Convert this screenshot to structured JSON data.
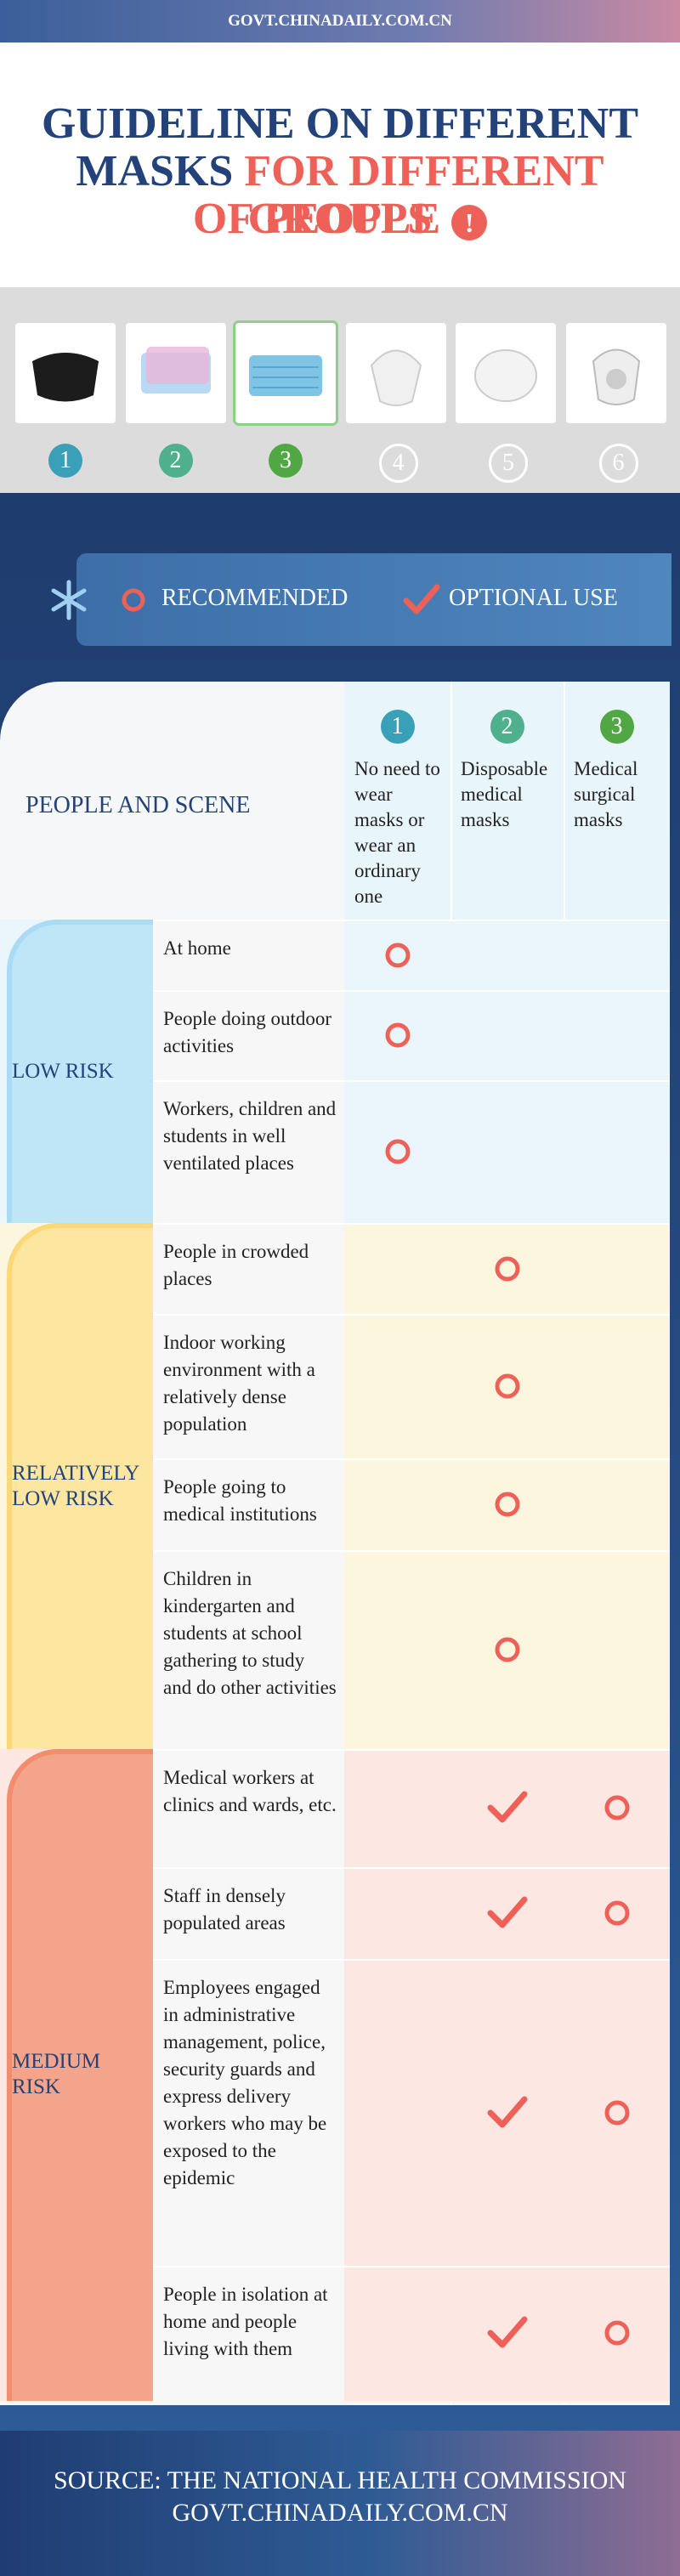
{
  "header": {
    "site": "GOVT.CHINADAILY.COM.CN"
  },
  "title": {
    "line1": "GUIDELINE ON DIFFERENT",
    "line2a": "MASKS",
    "line2b": "FOR DIFFERENT GROUPS",
    "line3": "OF PEOPLE",
    "alert": "!"
  },
  "masks": [
    "1",
    "2",
    "3",
    "4",
    "5",
    "6"
  ],
  "legend": {
    "recommended": "RECOMMENDED",
    "optional": "OPTIONAL USE"
  },
  "table": {
    "corner": "PEOPLE AND SCENE",
    "columns": [
      {
        "number": "1",
        "label": "No need to wear masks or wear an ordinary one"
      },
      {
        "number": "2",
        "label": "Disposable medical masks"
      },
      {
        "number": "3",
        "label": "Medical surgical masks"
      }
    ],
    "groups": [
      {
        "risk": "LOW RISK",
        "rows": [
          {
            "scene": "At home",
            "marks": [
              "recommended",
              null,
              null
            ]
          },
          {
            "scene": "People doing outdoor activities",
            "marks": [
              "recommended",
              null,
              null
            ]
          },
          {
            "scene": "Workers, children and students in well ventilated places",
            "marks": [
              "recommended",
              null,
              null
            ]
          }
        ]
      },
      {
        "risk": "RELATIVELY LOW RISK",
        "rows": [
          {
            "scene": "People in crowded places",
            "marks": [
              null,
              "recommended",
              null
            ]
          },
          {
            "scene": "Indoor working environment with a relatively dense population",
            "marks": [
              null,
              "recommended",
              null
            ]
          },
          {
            "scene": "People going to medical institutions",
            "marks": [
              null,
              "recommended",
              null
            ]
          },
          {
            "scene": "Children in kindergarten and students at school gathering to study and do other activities",
            "marks": [
              null,
              "recommended",
              null
            ]
          }
        ]
      },
      {
        "risk": "MEDIUM RISK",
        "rows": [
          {
            "scene": "Medical workers at clinics and wards, etc.",
            "marks": [
              null,
              "optional",
              "recommended"
            ]
          },
          {
            "scene": "Staff in densely populated areas",
            "marks": [
              null,
              "optional",
              "recommended"
            ]
          },
          {
            "scene": "Employees engaged in administrative management, police, security guards and express delivery workers who may be exposed to the epidemic",
            "marks": [
              null,
              "optional",
              "recommended"
            ]
          },
          {
            "scene": "People in isolation at home and people living with them",
            "marks": [
              null,
              "optional",
              "recommended"
            ]
          }
        ]
      }
    ]
  },
  "footer": {
    "source": "SOURCE: THE NATIONAL HEALTH COMMISSION",
    "site": "GOVT.CHINADAILY.COM.CN"
  }
}
